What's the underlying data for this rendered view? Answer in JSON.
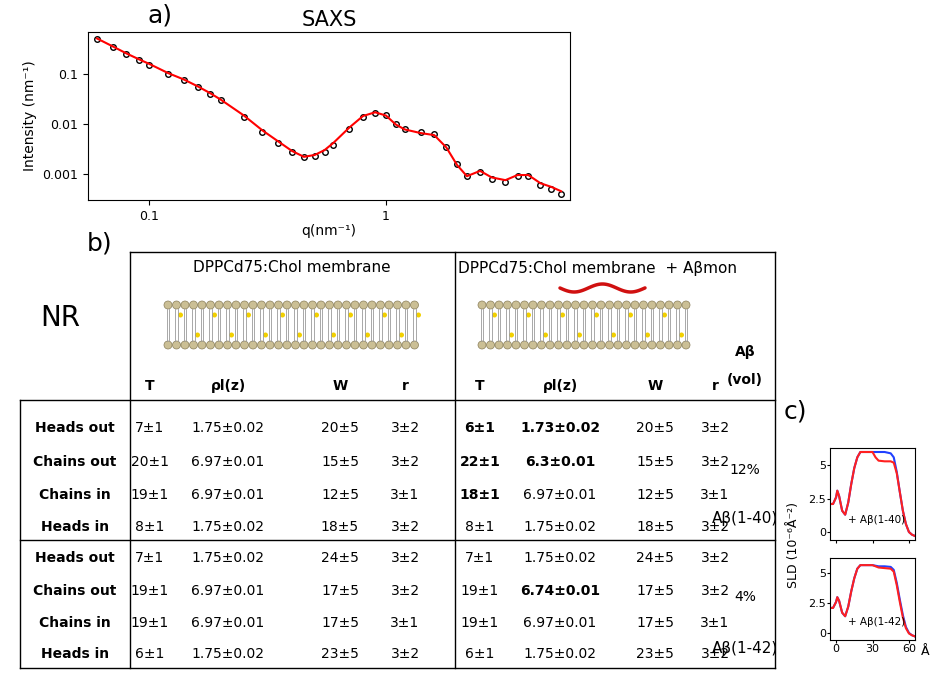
{
  "panel_labels": [
    "a)",
    "b)",
    "c)"
  ],
  "chart_data": [
    {
      "type": "line",
      "title": "SAXS",
      "xlabel": "q(nm⁻¹)",
      "ylabel": "Intensity (nm⁻¹)",
      "log": true,
      "xlim": [
        0.055,
        6
      ],
      "ylim": [
        0.0003,
        0.7
      ],
      "xticks": [
        0.1,
        1
      ],
      "yticks": [
        0.001,
        0.01,
        0.1
      ],
      "x": [
        0.06,
        0.07,
        0.08,
        0.09,
        0.1,
        0.12,
        0.14,
        0.16,
        0.18,
        0.2,
        0.25,
        0.3,
        0.35,
        0.4,
        0.45,
        0.5,
        0.55,
        0.6,
        0.7,
        0.8,
        0.9,
        1.0,
        1.1,
        1.2,
        1.4,
        1.6,
        1.8,
        2.0,
        2.2,
        2.5,
        2.8,
        3.2,
        3.6,
        4.0,
        4.5,
        5.0,
        5.5
      ],
      "series": [
        {
          "color": "#000000",
          "marker": "circle",
          "line_style": "none",
          "values": [
            0.5,
            0.35,
            0.25,
            0.19,
            0.15,
            0.1,
            0.075,
            0.055,
            0.04,
            0.03,
            0.014,
            0.007,
            0.0042,
            0.0028,
            0.0022,
            0.0023,
            0.0028,
            0.0038,
            0.008,
            0.014,
            0.017,
            0.015,
            0.01,
            0.008,
            0.0068,
            0.0062,
            0.0035,
            0.0016,
            0.0009,
            0.0011,
            0.0008,
            0.0007,
            0.0009,
            0.0009,
            0.0006,
            0.0005,
            0.0004
          ]
        },
        {
          "color": "#ff0000",
          "marker": "none",
          "line_style": "solid",
          "values": [
            0.52,
            0.36,
            0.26,
            0.2,
            0.16,
            0.105,
            0.078,
            0.057,
            0.042,
            0.031,
            0.015,
            0.0075,
            0.0045,
            0.0029,
            0.0022,
            0.0024,
            0.003,
            0.0042,
            0.0085,
            0.0145,
            0.0172,
            0.0148,
            0.0098,
            0.0078,
            0.0066,
            0.006,
            0.0034,
            0.0015,
            0.0009,
            0.00115,
            0.00085,
            0.00075,
            0.00095,
            0.00095,
            0.00065,
            0.00055,
            0.00045
          ]
        }
      ]
    },
    {
      "type": "line",
      "ylabel": "SLD (10⁻⁶Å⁻²)",
      "annotation": "+ Aβ(1-40)",
      "tick_labels": "y",
      "xlim": [
        -5,
        65
      ],
      "ylim": [
        -0.6,
        6.3
      ],
      "xticks": [
        0,
        30,
        60
      ],
      "yticks": [
        0,
        2.5,
        5
      ],
      "x": [
        -5,
        -2.5,
        0,
        1,
        2.5,
        5,
        7.5,
        10,
        12.5,
        15,
        17.5,
        20,
        25,
        30,
        32.5,
        35,
        40,
        45,
        47.5,
        50,
        52.5,
        55,
        57.5,
        60,
        62.5,
        65
      ],
      "series": [
        {
          "color": "#2040ff",
          "line_style": "solid",
          "values": [
            2.1,
            2.1,
            2.6,
            3.1,
            2.7,
            1.6,
            1.3,
            2.2,
            3.6,
            4.8,
            5.6,
            6.0,
            6.0,
            6.0,
            6.0,
            6.0,
            6.0,
            5.9,
            5.6,
            4.5,
            3.0,
            1.6,
            0.6,
            0.0,
            -0.2,
            -0.3
          ]
        },
        {
          "color": "#ff2020",
          "line_style": "solid",
          "values": [
            2.1,
            2.1,
            2.6,
            3.1,
            2.7,
            1.6,
            1.3,
            2.2,
            3.6,
            4.8,
            5.6,
            6.0,
            6.0,
            6.0,
            5.6,
            5.35,
            5.3,
            5.3,
            5.2,
            4.4,
            3.0,
            1.6,
            0.6,
            0.0,
            -0.2,
            -0.3
          ]
        }
      ]
    },
    {
      "type": "line",
      "xlabel": "Å",
      "annotation": "+ Aβ(1-42)",
      "xlim": [
        -5,
        65
      ],
      "ylim": [
        -0.6,
        6.3
      ],
      "xticks": [
        0,
        30,
        60
      ],
      "yticks": [
        0,
        2.5,
        5
      ],
      "x": [
        -5,
        -2.5,
        0,
        1,
        2.5,
        5,
        7.5,
        10,
        12.5,
        15,
        17.5,
        20,
        25,
        30,
        32.5,
        35,
        40,
        45,
        47.5,
        50,
        52.5,
        55,
        57.5,
        60,
        62.5,
        65
      ],
      "series": [
        {
          "color": "#2040ff",
          "line_style": "solid",
          "values": [
            2.1,
            2.1,
            2.6,
            3.0,
            2.7,
            1.7,
            1.4,
            2.2,
            3.5,
            4.6,
            5.4,
            5.7,
            5.7,
            5.7,
            5.65,
            5.6,
            5.6,
            5.55,
            5.3,
            4.2,
            2.8,
            1.5,
            0.5,
            0.0,
            -0.2,
            -0.3
          ]
        },
        {
          "color": "#ff2020",
          "line_style": "solid",
          "values": [
            2.1,
            2.1,
            2.6,
            3.0,
            2.7,
            1.7,
            1.4,
            2.2,
            3.5,
            4.6,
            5.4,
            5.7,
            5.7,
            5.7,
            5.6,
            5.5,
            5.45,
            5.4,
            5.15,
            4.0,
            2.6,
            1.3,
            0.4,
            -0.05,
            -0.2,
            -0.3
          ]
        }
      ]
    }
  ],
  "table": {
    "label": "NR",
    "headers": [
      "DPPCd75:Chol membrane",
      "DPPCd75:Chol membrane  + Aβmon"
    ],
    "columns": [
      "T",
      "ρl(z)",
      "W",
      "r"
    ],
    "extra_column": [
      "Aβ",
      "(vol)"
    ],
    "groups": [
      {
        "peptide": "Aβ(1-40)",
        "vol": "12%",
        "rows": [
          {
            "label": "Heads out",
            "membrane": [
              "7±1",
              "1.75±0.02",
              "20±5",
              "3±2"
            ],
            "with_peptide": [
              {
                "text": "6±1",
                "bold": true
              },
              {
                "text": "1.73±0.02",
                "bold": true
              },
              "20±5",
              "3±2"
            ]
          },
          {
            "label": "Chains out",
            "membrane": [
              "20±1",
              "6.97±0.01",
              "15±5",
              "3±2"
            ],
            "with_peptide": [
              {
                "text": "22±1",
                "bold": true
              },
              {
                "text": "6.3±0.01",
                "bold": true
              },
              "15±5",
              "3±2"
            ]
          },
          {
            "label": "Chains in",
            "membrane": [
              "19±1",
              "6.97±0.01",
              "12±5",
              "3±1"
            ],
            "with_peptide": [
              {
                "text": "18±1",
                "bold": true
              },
              "6.97±0.01",
              "12±5",
              "3±1"
            ]
          },
          {
            "label": "Heads in",
            "membrane": [
              "8±1",
              "1.75±0.02",
              "18±5",
              "3±2"
            ],
            "with_peptide": [
              "8±1",
              "1.75±0.02",
              "18±5",
              "3±2"
            ]
          }
        ]
      },
      {
        "peptide": "Aβ(1-42)",
        "vol": "4%",
        "rows": [
          {
            "label": "Heads out",
            "membrane": [
              "7±1",
              "1.75±0.02",
              "24±5",
              "3±2"
            ],
            "with_peptide": [
              "7±1",
              "1.75±0.02",
              "24±5",
              "3±2"
            ]
          },
          {
            "label": "Chains out",
            "membrane": [
              "19±1",
              "6.97±0.01",
              "17±5",
              "3±2"
            ],
            "with_peptide": [
              "19±1",
              {
                "text": "6.74±0.01",
                "bold": true
              },
              "17±5",
              "3±2"
            ]
          },
          {
            "label": "Chains in",
            "membrane": [
              "19±1",
              "6.97±0.01",
              "17±5",
              "3±1"
            ],
            "with_peptide": [
              "19±1",
              "6.97±0.01",
              "17±5",
              "3±1"
            ]
          },
          {
            "label": "Heads in",
            "membrane": [
              "6±1",
              "1.75±0.02",
              "23±5",
              "3±2"
            ],
            "with_peptide": [
              "6±1",
              "1.75±0.02",
              "23±5",
              "3±2"
            ]
          }
        ]
      }
    ]
  }
}
